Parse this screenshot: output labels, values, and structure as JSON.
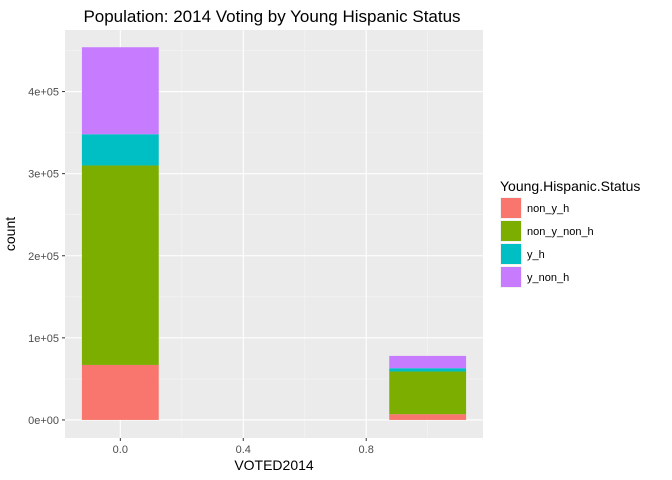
{
  "chart_data": {
    "type": "bar",
    "stacked": true,
    "title": "Population: 2014 Voting by Young Hispanic Status",
    "xlabel": "VOTED2014",
    "ylabel": "count",
    "x_ticks": [
      "0.0",
      "0.4",
      "0.8"
    ],
    "y_ticks": [
      "0e+00",
      "1e+05",
      "2e+05",
      "3e+05",
      "4e+05"
    ],
    "xlim": [
      -0.18,
      1.18
    ],
    "ylim": [
      -22000,
      475000
    ],
    "bar_width": 0.25,
    "grid": true,
    "legend_position": "right",
    "legend_title": "Young.Hispanic.Status",
    "categories": [
      0,
      1
    ],
    "series": [
      {
        "name": "non_y_h",
        "color": "#F8766D",
        "values": [
          67000,
          7000
        ]
      },
      {
        "name": "non_y_non_h",
        "color": "#7CAE00",
        "values": [
          243000,
          52000
        ]
      },
      {
        "name": "y_h",
        "color": "#00BFC4",
        "values": [
          38000,
          4000
        ]
      },
      {
        "name": "y_non_h",
        "color": "#C77CFF",
        "values": [
          106000,
          15000
        ]
      }
    ]
  }
}
